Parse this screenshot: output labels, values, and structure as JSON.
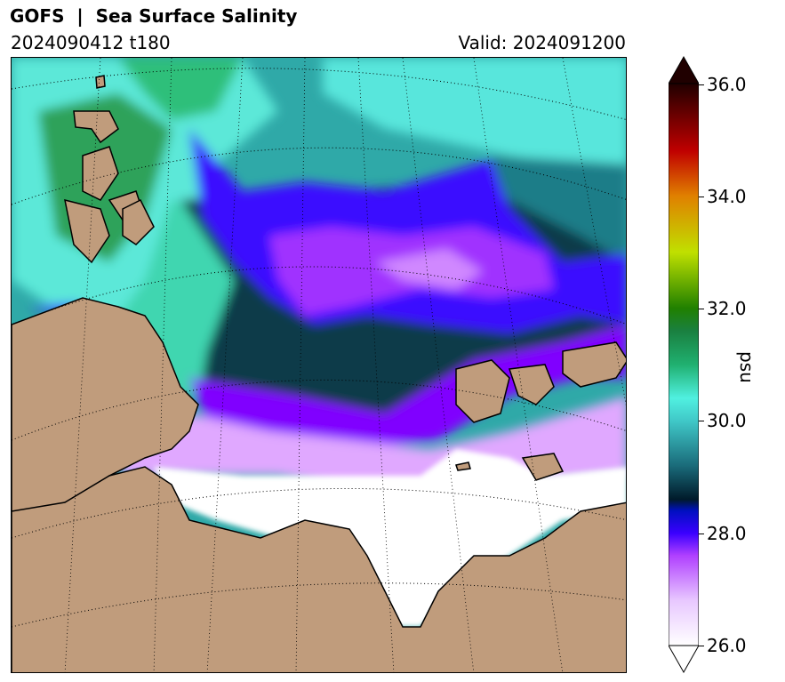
{
  "header": {
    "title": "GOFS  |  Sea Surface Salinity",
    "run": "2024090412 t180",
    "valid": "Valid: 2024091200"
  },
  "colorbar": {
    "unit": "psu",
    "ticks": [
      "26.0",
      "28.0",
      "30.0",
      "32.0",
      "34.0",
      "36.0"
    ],
    "range": [
      26.0,
      36.0
    ],
    "colors": {
      "min": "#ffffff",
      "c27": "#d080ff",
      "c28": "#3a00ff",
      "c28_5": "#001a2a",
      "c29": "#1a6b7a",
      "c30": "#40c8c8",
      "c30_5": "#50f0e0",
      "c31": "#20b070",
      "c32": "#208000",
      "c33": "#c0e000",
      "c34": "#e08000",
      "c35": "#c00000",
      "max": "#200000"
    },
    "extend": "both"
  },
  "map": {
    "land_color": "#c09c7c",
    "ice_color": "#ffffff",
    "graticule": "dotted"
  }
}
